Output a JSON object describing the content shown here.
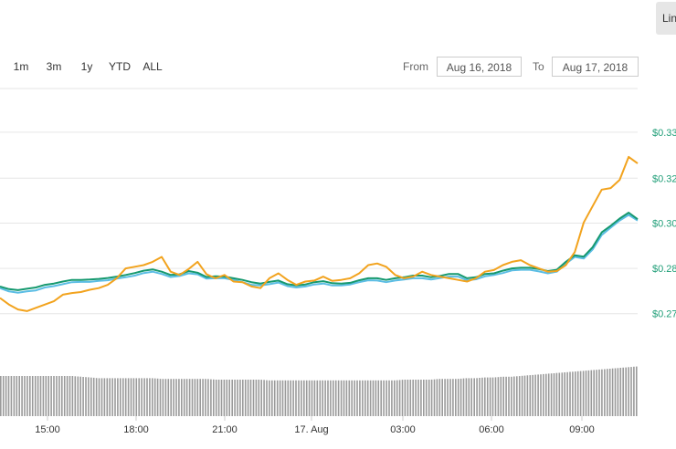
{
  "toolbar": {
    "zoom_buttons": [
      "1m",
      "3m",
      "1y",
      "YTD",
      "ALL"
    ],
    "from_label": "From",
    "from_value": "Aug 16, 2018",
    "to_label": "To",
    "to_value": "Aug 17, 2018",
    "chart_type_button": "Lin"
  },
  "colors": {
    "price_usd": "#16996f",
    "price_alt": "#5bbde4",
    "price_btc": "#f2a31e",
    "grid": "#e6e6e6",
    "volume": "#9a9a9a"
  },
  "chart_data": {
    "type": "line",
    "title": "",
    "xlabel": "",
    "ylabel": "",
    "x_ticks": [
      "15:00",
      "18:00",
      "21:00",
      "17. Aug",
      "03:00",
      "06:00",
      "09:00"
    ],
    "y_ticks": [
      "$0.33",
      "$0.32",
      "$0.30",
      "$0.28",
      "$0.27"
    ],
    "ylim": [
      0.266,
      0.345
    ],
    "grid": true,
    "x": [
      13.5,
      13.8,
      14.1,
      14.4,
      14.7,
      15.0,
      15.3,
      15.6,
      15.9,
      16.2,
      16.5,
      16.8,
      17.1,
      17.4,
      17.7,
      18.0,
      18.3,
      18.6,
      18.9,
      19.2,
      19.5,
      19.8,
      20.1,
      20.4,
      20.7,
      21.0,
      21.3,
      21.6,
      21.9,
      22.2,
      22.5,
      22.8,
      23.1,
      23.4,
      23.7,
      24.0,
      24.3,
      24.6,
      24.9,
      25.2,
      25.5,
      25.8,
      26.1,
      26.4,
      26.7,
      27.0,
      27.3,
      27.6,
      27.9,
      28.2,
      28.5,
      28.8,
      29.1,
      29.4,
      29.7,
      30.0,
      30.3,
      30.6,
      30.9,
      31.2,
      31.5,
      31.8,
      32.1,
      32.4,
      32.7,
      33.0,
      33.3,
      33.6,
      33.9,
      34.2,
      34.5,
      34.8
    ],
    "series": [
      {
        "values": [
          0.2855,
          0.2847,
          0.2844,
          0.2848,
          0.2852,
          0.286,
          0.2864,
          0.287,
          0.2875,
          0.2875,
          0.2876,
          0.2878,
          0.2881,
          0.2885,
          0.289,
          0.2896,
          0.2903,
          0.2907,
          0.29,
          0.289,
          0.2892,
          0.2902,
          0.2897,
          0.2884,
          0.2886,
          0.2885,
          0.288,
          0.2875,
          0.2868,
          0.2864,
          0.2869,
          0.2873,
          0.2862,
          0.2858,
          0.2861,
          0.2868,
          0.2871,
          0.2865,
          0.2864,
          0.2866,
          0.2874,
          0.288,
          0.288,
          0.2875,
          0.288,
          0.2883,
          0.2888,
          0.2888,
          0.2883,
          0.2887,
          0.2893,
          0.2893,
          0.288,
          0.2883,
          0.2893,
          0.2895,
          0.2903,
          0.291,
          0.2912,
          0.2912,
          0.2908,
          0.2902,
          0.2906,
          0.293,
          0.295,
          0.2946,
          0.2975,
          0.302,
          0.304,
          0.3062,
          0.308,
          0.306
        ]
      },
      {
        "values": [
          0.285,
          0.284,
          0.2836,
          0.284,
          0.2843,
          0.2852,
          0.2856,
          0.2862,
          0.2868,
          0.2869,
          0.2869,
          0.2872,
          0.2874,
          0.2879,
          0.2883,
          0.2888,
          0.2896,
          0.29,
          0.2893,
          0.2884,
          0.2887,
          0.2895,
          0.2892,
          0.2879,
          0.288,
          0.288,
          0.2875,
          0.2868,
          0.286,
          0.2858,
          0.2862,
          0.2867,
          0.2856,
          0.2852,
          0.2855,
          0.2861,
          0.2864,
          0.2858,
          0.2858,
          0.2861,
          0.2868,
          0.2874,
          0.2873,
          0.2868,
          0.2873,
          0.2876,
          0.288,
          0.288,
          0.2876,
          0.2881,
          0.2885,
          0.2885,
          0.2874,
          0.2877,
          0.2886,
          0.289,
          0.2896,
          0.2904,
          0.2906,
          0.2906,
          0.2901,
          0.2895,
          0.29,
          0.2924,
          0.2945,
          0.294,
          0.2968,
          0.3012,
          0.3034,
          0.3056,
          0.3073,
          0.3056
        ]
      },
      {
        "values": [
          0.282,
          0.28,
          0.2785,
          0.278,
          0.279,
          0.28,
          0.281,
          0.283,
          0.2835,
          0.2838,
          0.2845,
          0.285,
          0.286,
          0.288,
          0.291,
          0.2915,
          0.292,
          0.293,
          0.2945,
          0.29,
          0.289,
          0.2908,
          0.293,
          0.2892,
          0.288,
          0.289,
          0.287,
          0.2868,
          0.2855,
          0.285,
          0.288,
          0.2895,
          0.2875,
          0.286,
          0.287,
          0.2873,
          0.2885,
          0.2872,
          0.2875,
          0.288,
          0.2895,
          0.292,
          0.2925,
          0.2915,
          0.289,
          0.288,
          0.2885,
          0.29,
          0.289,
          0.2885,
          0.288,
          0.2875,
          0.287,
          0.288,
          0.29,
          0.2905,
          0.292,
          0.293,
          0.2935,
          0.292,
          0.291,
          0.29,
          0.2902,
          0.292,
          0.296,
          0.305,
          0.31,
          0.315,
          0.3155,
          0.318,
          0.325,
          0.323
        ]
      }
    ],
    "volume": [
      0.55,
      0.55,
      0.55,
      0.55,
      0.55,
      0.55,
      0.55,
      0.55,
      0.55,
      0.54,
      0.53,
      0.52,
      0.52,
      0.52,
      0.52,
      0.52,
      0.52,
      0.52,
      0.51,
      0.51,
      0.51,
      0.51,
      0.51,
      0.51,
      0.5,
      0.5,
      0.5,
      0.5,
      0.5,
      0.5,
      0.49,
      0.49,
      0.49,
      0.49,
      0.49,
      0.49,
      0.49,
      0.49,
      0.49,
      0.49,
      0.49,
      0.49,
      0.49,
      0.49,
      0.49,
      0.5,
      0.5,
      0.5,
      0.5,
      0.51,
      0.51,
      0.51,
      0.52,
      0.52,
      0.53,
      0.53,
      0.54,
      0.54,
      0.55,
      0.56,
      0.57,
      0.58,
      0.59,
      0.6,
      0.61,
      0.62,
      0.63,
      0.64,
      0.65,
      0.66,
      0.67,
      0.68
    ]
  }
}
